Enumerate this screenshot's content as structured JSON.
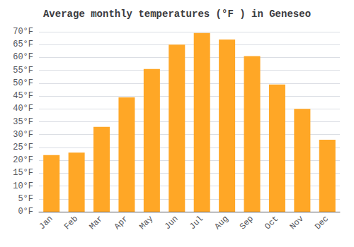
{
  "chart_data": {
    "type": "bar",
    "title": "Average monthly temperatures (°F ) in Geneseo",
    "categories": [
      "Jan",
      "Feb",
      "Mar",
      "Apr",
      "May",
      "Jun",
      "Jul",
      "Aug",
      "Sep",
      "Oct",
      "Nov",
      "Dec"
    ],
    "values": [
      22,
      23,
      33,
      44.5,
      55.5,
      65,
      69.5,
      67,
      60.5,
      49.5,
      40,
      28
    ],
    "color": "#FFA726",
    "ylim": [
      0,
      70
    ],
    "yticks": [
      {
        "value": 0,
        "label": "0°F"
      },
      {
        "value": 5,
        "label": "5°F"
      },
      {
        "value": 10,
        "label": "10°F"
      },
      {
        "value": 15,
        "label": "15°F"
      },
      {
        "value": 20,
        "label": "20°F"
      },
      {
        "value": 25,
        "label": "25°F"
      },
      {
        "value": 30,
        "label": "30°F"
      },
      {
        "value": 35,
        "label": "35°F"
      },
      {
        "value": 40,
        "label": "40°F"
      },
      {
        "value": 45,
        "label": "45°F"
      },
      {
        "value": 50,
        "label": "50°F"
      },
      {
        "value": 55,
        "label": "55°F"
      },
      {
        "value": 60,
        "label": "60°F"
      },
      {
        "value": 65,
        "label": "65°F"
      },
      {
        "value": 70,
        "label": "70°F"
      }
    ],
    "grid": true
  }
}
